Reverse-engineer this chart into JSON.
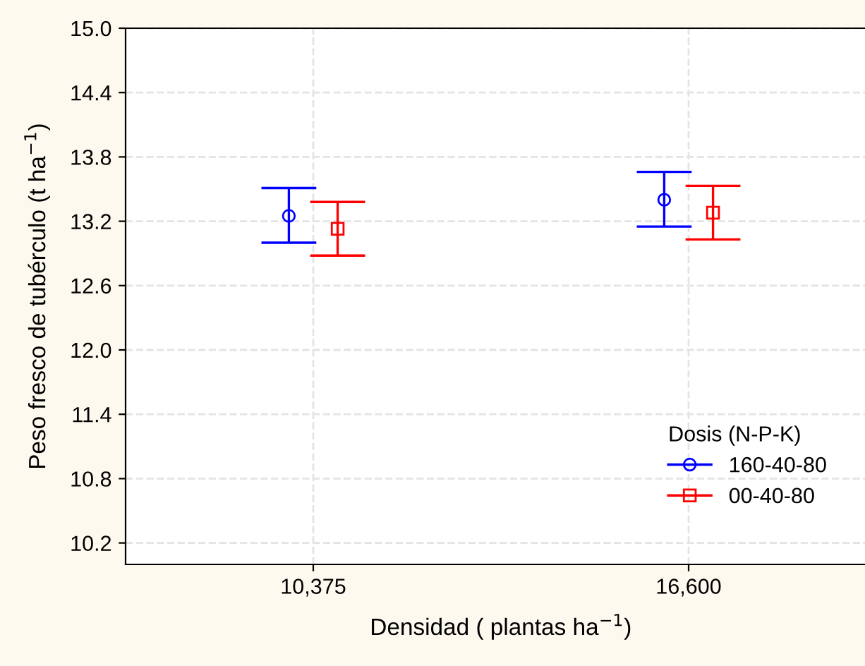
{
  "chart_data": {
    "type": "scatter",
    "xlabel": "Densidad ( plantas ha$^{−1}$)",
    "ylabel": "Peso fresco de tubérculo (t ha$^{−1}$)",
    "legend_title": "Dosis (N-P-K)",
    "categories": [
      "10,375",
      "16,600"
    ],
    "series": [
      {
        "name": "160-40-80",
        "color": "#0000ff",
        "values": [
          13.25,
          13.4
        ],
        "errors": [
          [
            13.0,
            13.51
          ],
          [
            13.15,
            13.66
          ]
        ],
        "marker": "circle"
      },
      {
        "name": "00-40-80",
        "color": "#ff0000",
        "values": [
          13.13,
          13.28
        ],
        "errors": [
          [
            12.88,
            13.38
          ],
          [
            13.03,
            13.53
          ]
        ],
        "marker": "square"
      }
    ],
    "ylim": [
      10.0,
      15.0
    ],
    "yticks": [
      {
        "value": 10.2,
        "label": "10.2"
      },
      {
        "value": 10.8,
        "label": "10.8"
      },
      {
        "value": 11.4,
        "label": "11.4"
      },
      {
        "value": 12.0,
        "label": "12.0"
      },
      {
        "value": 12.6,
        "label": "12.6"
      },
      {
        "value": 13.2,
        "label": "13.2"
      },
      {
        "value": 13.8,
        "label": "13.8"
      },
      {
        "value": 14.4,
        "label": "14.4"
      },
      {
        "value": 15.0,
        "label": "15.0"
      }
    ],
    "grid": true,
    "legend": "bottom right"
  }
}
